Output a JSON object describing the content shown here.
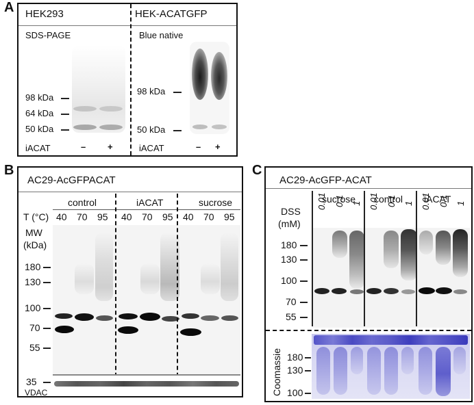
{
  "panel_a": {
    "letter": "A",
    "left_title": "HEK293",
    "right_title": "HEK-ACATGFP",
    "left_method": "SDS-PAGE",
    "right_method": "Blue native",
    "left_markers": [
      "98 kDa",
      "64 kDa",
      "50 kDa"
    ],
    "right_markers": [
      "98 kDa",
      "50 kDa"
    ],
    "iacat_label": "iACAT",
    "minus": "–",
    "plus": "+"
  },
  "panel_b": {
    "letter": "B",
    "title": "AC29-AcGFPACAT",
    "groups": [
      "control",
      "iACAT",
      "sucrose"
    ],
    "temp_label": "T (°C)",
    "temps": [
      "40",
      "70",
      "95",
      "40",
      "70",
      "95",
      "40",
      "70",
      "95"
    ],
    "mw_label": "MW",
    "kda_label": "(kDa)",
    "markers": [
      "180",
      "130",
      "100",
      "70",
      "55"
    ],
    "loading_marker": "35",
    "loading_label": "VDAC"
  },
  "panel_c": {
    "letter": "C",
    "title": "AC29-AcGFP-ACAT",
    "groups": [
      "sucrose",
      "control",
      "iACAT"
    ],
    "dss_label": "DSS",
    "mm_label": "(mM)",
    "conc": [
      "0.01",
      "0.1",
      "1",
      "0.01",
      "0.1",
      "1",
      "0.01",
      "0.1",
      "1"
    ],
    "markers": [
      "180",
      "130",
      "100",
      "70",
      "55"
    ],
    "coomassie_label": "Coomassie",
    "coomassie_markers": [
      "180",
      "130",
      "100"
    ]
  }
}
